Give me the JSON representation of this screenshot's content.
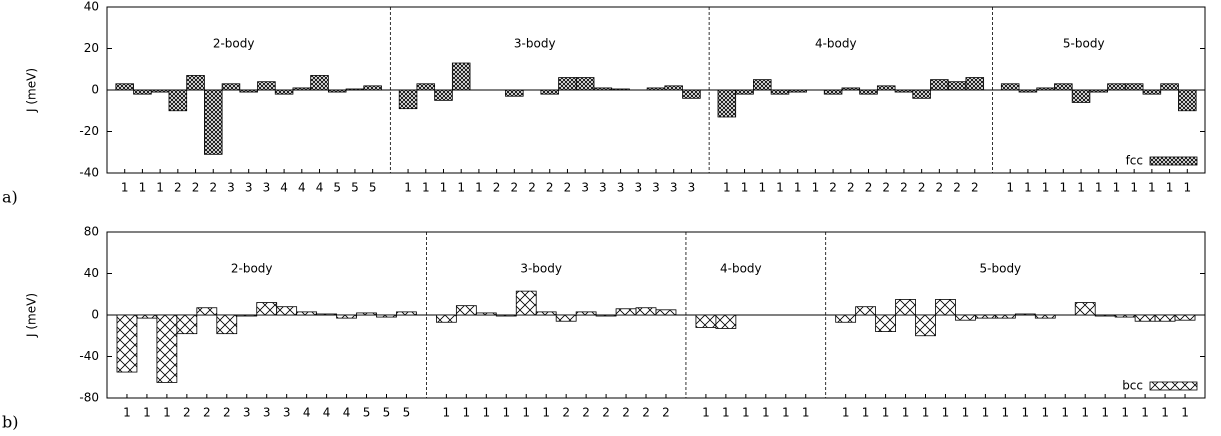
{
  "chart_data": [
    {
      "type": "bar",
      "panel_label": "a)",
      "ylabel": "J (meV)",
      "legend_label": "fcc",
      "pattern": "dense-crosshatch",
      "ylim": [
        -40,
        40
      ],
      "yticks": [
        -40,
        -20,
        0,
        20,
        40
      ],
      "groups": [
        {
          "label": "2-body",
          "categories": [
            "1",
            "1",
            "1",
            "2",
            "2",
            "2",
            "3",
            "3",
            "3",
            "4",
            "4",
            "4",
            "5",
            "5",
            "5"
          ],
          "values": [
            3,
            -2,
            -1,
            -10,
            7,
            -31,
            3,
            -1,
            4,
            -2,
            1,
            7,
            -1,
            0.5,
            2
          ]
        },
        {
          "label": "3-body",
          "categories": [
            "1",
            "1",
            "1",
            "1",
            "1",
            "2",
            "2",
            "2",
            "2",
            "2",
            "3",
            "3",
            "3",
            "3",
            "3",
            "3",
            "3"
          ],
          "values": [
            -9,
            3,
            -5,
            13,
            0,
            0,
            -3,
            0,
            -2,
            6,
            6,
            1,
            0.5,
            0,
            1,
            2,
            -4
          ]
        },
        {
          "label": "4-body",
          "categories": [
            "1",
            "1",
            "1",
            "1",
            "1",
            "1",
            "2",
            "2",
            "2",
            "2",
            "2",
            "2",
            "2",
            "2",
            "2"
          ],
          "values": [
            -13,
            -2,
            5,
            -2,
            -1,
            0,
            -2,
            1,
            -2,
            2,
            -1,
            -4,
            5,
            4,
            6
          ]
        },
        {
          "label": "5-body",
          "categories": [
            "1",
            "1",
            "1",
            "1",
            "1",
            "1",
            "1",
            "1",
            "1",
            "1",
            "1"
          ],
          "values": [
            3,
            -1,
            1,
            3,
            -6,
            -1,
            3,
            3,
            -2,
            3,
            -10
          ]
        }
      ]
    },
    {
      "type": "bar",
      "panel_label": "b)",
      "ylabel": "J (meV)",
      "legend_label": "bcc",
      "pattern": "sparse-crosshatch",
      "ylim": [
        -80,
        80
      ],
      "yticks": [
        -80,
        -40,
        0,
        40,
        80
      ],
      "groups": [
        {
          "label": "2-body",
          "categories": [
            "1",
            "1",
            "1",
            "2",
            "2",
            "2",
            "3",
            "3",
            "3",
            "4",
            "4",
            "4",
            "5",
            "5",
            "5"
          ],
          "values": [
            -55,
            -3,
            -65,
            -18,
            7,
            -18,
            -1,
            12,
            8,
            3,
            1,
            -3,
            2,
            -2,
            3
          ]
        },
        {
          "label": "3-body",
          "categories": [
            "1",
            "1",
            "1",
            "1",
            "1",
            "1",
            "2",
            "2",
            "2",
            "2",
            "2",
            "2"
          ],
          "values": [
            -7,
            9,
            2,
            -1,
            23,
            3,
            -6,
            3,
            -1,
            6,
            7,
            5
          ]
        },
        {
          "label": "4-body",
          "categories": [
            "1",
            "1",
            "1",
            "1",
            "1",
            "1"
          ],
          "values": [
            -12,
            -13,
            0,
            0,
            0,
            0
          ]
        },
        {
          "label": "5-body",
          "categories": [
            "1",
            "1",
            "1",
            "1",
            "1",
            "1",
            "1",
            "1",
            "1",
            "1",
            "1",
            "1",
            "1",
            "1",
            "1",
            "1",
            "1",
            "1"
          ],
          "values": [
            -7,
            8,
            -16,
            15,
            -20,
            15,
            -5,
            -3,
            -3,
            1,
            -3,
            0,
            12,
            -1,
            -2,
            -6,
            -6,
            -5
          ]
        }
      ]
    }
  ]
}
